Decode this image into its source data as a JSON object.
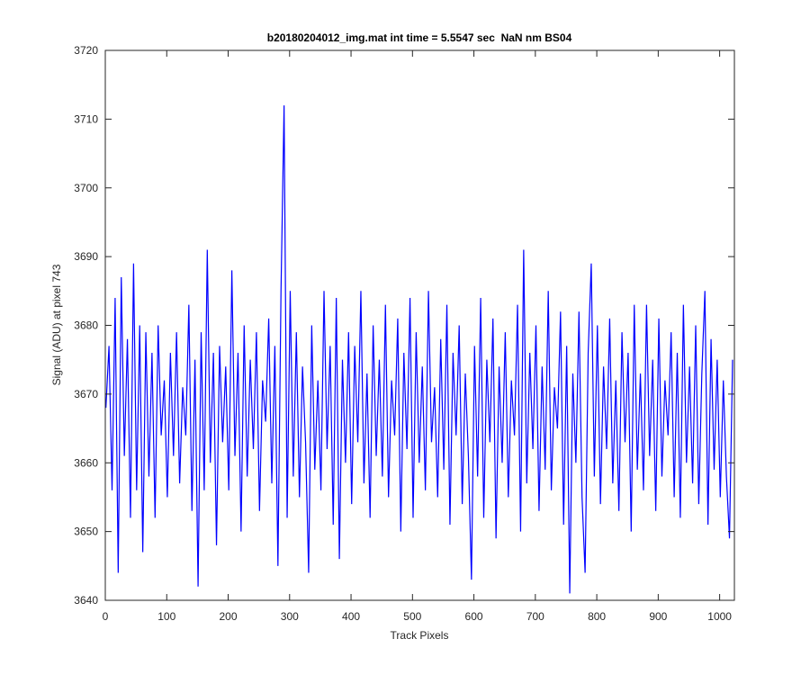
{
  "chart_data": {
    "type": "line",
    "title": "b20180204012_img.mat int time = 5.5547 sec  NaN nm BS04",
    "x_label": "Track Pixels",
    "y_label": "Signal (ADU) at pixel 743",
    "xlim": [
      0,
      1024
    ],
    "ylim": [
      3640,
      3720
    ],
    "xticks": [
      0,
      100,
      200,
      300,
      400,
      500,
      600,
      700,
      800,
      900,
      1000
    ],
    "yticks": [
      3640,
      3650,
      3660,
      3670,
      3680,
      3690,
      3700,
      3710,
      3720
    ],
    "grid": false,
    "x": [
      1,
      6,
      11,
      16,
      21,
      26,
      31,
      36,
      41,
      46,
      51,
      56,
      61,
      66,
      71,
      76,
      81,
      86,
      91,
      96,
      101,
      106,
      111,
      116,
      121,
      126,
      131,
      136,
      141,
      146,
      151,
      156,
      161,
      166,
      171,
      176,
      181,
      186,
      191,
      196,
      201,
      206,
      211,
      216,
      221,
      226,
      231,
      236,
      241,
      246,
      251,
      256,
      261,
      266,
      271,
      276,
      281,
      286,
      291,
      296,
      301,
      306,
      311,
      316,
      321,
      326,
      331,
      336,
      341,
      346,
      351,
      356,
      361,
      366,
      371,
      376,
      381,
      386,
      391,
      396,
      401,
      406,
      411,
      416,
      421,
      426,
      431,
      436,
      441,
      446,
      451,
      456,
      461,
      466,
      471,
      476,
      481,
      486,
      491,
      496,
      501,
      506,
      511,
      516,
      521,
      526,
      531,
      536,
      541,
      546,
      551,
      556,
      561,
      566,
      571,
      576,
      581,
      586,
      591,
      596,
      601,
      606,
      611,
      616,
      621,
      626,
      631,
      636,
      641,
      646,
      651,
      656,
      661,
      666,
      671,
      676,
      681,
      686,
      691,
      696,
      701,
      706,
      711,
      716,
      721,
      726,
      731,
      736,
      741,
      746,
      751,
      756,
      761,
      766,
      771,
      776,
      781,
      786,
      791,
      796,
      801,
      806,
      811,
      816,
      821,
      826,
      831,
      836,
      841,
      846,
      851,
      856,
      861,
      866,
      871,
      876,
      881,
      886,
      891,
      896,
      901,
      906,
      911,
      916,
      921,
      926,
      931,
      936,
      941,
      946,
      951,
      956,
      961,
      966,
      971,
      976,
      981,
      986,
      991,
      996,
      1001,
      1006,
      1011,
      1016,
      1021
    ],
    "series": [
      {
        "name": "signal",
        "color": "#0000ff",
        "values": [
          3668,
          3677,
          3656,
          3684,
          3644,
          3687,
          3661,
          3678,
          3652,
          3689,
          3656,
          3680,
          3647,
          3679,
          3658,
          3676,
          3652,
          3680,
          3664,
          3672,
          3655,
          3676,
          3661,
          3679,
          3657,
          3671,
          3664,
          3683,
          3653,
          3675,
          3642,
          3679,
          3656,
          3691,
          3660,
          3676,
          3648,
          3677,
          3663,
          3674,
          3656,
          3688,
          3661,
          3676,
          3650,
          3680,
          3658,
          3675,
          3662,
          3679,
          3653,
          3672,
          3666,
          3681,
          3657,
          3677,
          3645,
          3685,
          3712,
          3652,
          3685,
          3658,
          3679,
          3655,
          3674,
          3663,
          3644,
          3680,
          3659,
          3672,
          3656,
          3685,
          3662,
          3677,
          3651,
          3684,
          3646,
          3675,
          3660,
          3679,
          3654,
          3677,
          3663,
          3685,
          3657,
          3673,
          3652,
          3680,
          3661,
          3675,
          3658,
          3683,
          3655,
          3672,
          3664,
          3681,
          3650,
          3676,
          3662,
          3684,
          3652,
          3679,
          3660,
          3674,
          3656,
          3685,
          3663,
          3671,
          3655,
          3678,
          3659,
          3683,
          3651,
          3676,
          3664,
          3680,
          3654,
          3673,
          3661,
          3643,
          3677,
          3658,
          3684,
          3652,
          3675,
          3663,
          3681,
          3649,
          3674,
          3660,
          3679,
          3655,
          3672,
          3664,
          3683,
          3650,
          3691,
          3657,
          3676,
          3662,
          3680,
          3653,
          3674,
          3659,
          3685,
          3656,
          3671,
          3665,
          3682,
          3651,
          3677,
          3641,
          3673,
          3660,
          3682,
          3655,
          3644,
          3676,
          3689,
          3658,
          3680,
          3654,
          3674,
          3662,
          3681,
          3657,
          3672,
          3653,
          3679,
          3663,
          3676,
          3650,
          3683,
          3659,
          3673,
          3656,
          3683,
          3661,
          3675,
          3653,
          3681,
          3658,
          3672,
          3664,
          3679,
          3655,
          3676,
          3652,
          3683,
          3660,
          3674,
          3657,
          3680,
          3654,
          3673,
          3685,
          3651,
          3678,
          3659,
          3675,
          3655,
          3672,
          3658,
          3649,
          3675
        ]
      }
    ]
  }
}
